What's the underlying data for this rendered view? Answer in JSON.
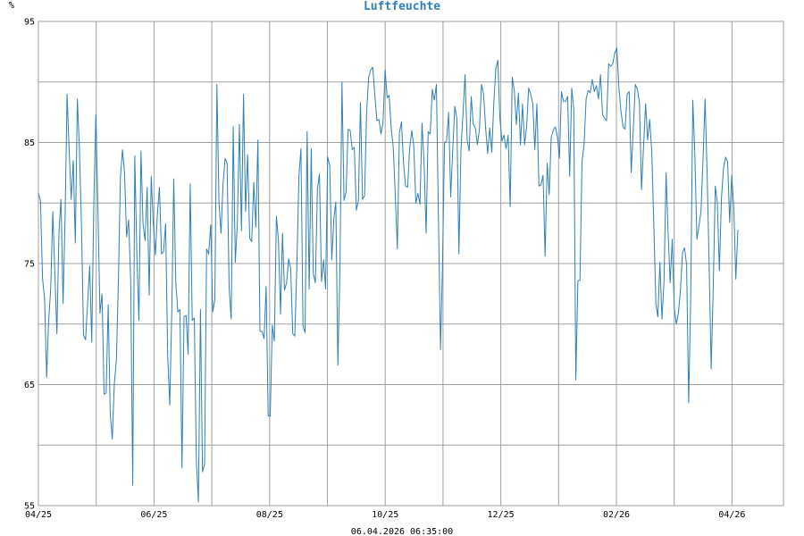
{
  "chart_data": {
    "type": "line",
    "title": "Luftfeuchte",
    "ylabel": "%",
    "footer": "06.04.2026 06:35:00",
    "ylim": [
      55,
      95
    ],
    "y_ticks": [
      95,
      85,
      75,
      65,
      55
    ],
    "x_tick_labels": [
      "04/25",
      "06/25",
      "08/25",
      "10/25",
      "12/25",
      "02/26",
      "04/26"
    ],
    "grid": true,
    "colors": {
      "line": "#2f7fb8",
      "grid": "#a0a0a0",
      "title": "#2f7fb8"
    },
    "series": [
      {
        "values": [
          80.8,
          80.2,
          73.8,
          72.1,
          65.6,
          70.3,
          73.0,
          79.3,
          74.2,
          69.2,
          77.6,
          80.3,
          71.7,
          79.0,
          89.0,
          84.4,
          80.3,
          83.5,
          76.7,
          88.6,
          84.5,
          78.1,
          69.1,
          68.7,
          71.8,
          74.8,
          68.5,
          79.9,
          87.3,
          79.6,
          70.9,
          72.5,
          64.2,
          64.3,
          71.6,
          62.6,
          60.5,
          65.1,
          67.0,
          73.8,
          82.1,
          84.4,
          82.5,
          77.2,
          78.6,
          73.5,
          56.7,
          83.9,
          75.7,
          70.3,
          84.3,
          78.3,
          76.9,
          81.3,
          72.4,
          82.2,
          78.3,
          75.7,
          79.1,
          81.3,
          75.8,
          76.0,
          78.3,
          67.4,
          63.3,
          71.1,
          82.0,
          73.4,
          71.0,
          71.2,
          58.1,
          70.6,
          70.7,
          67.5,
          81.6,
          70.3,
          70.5,
          58.7,
          55.3,
          71.2,
          57.8,
          58.4,
          76.2,
          75.8,
          78.2,
          71.0,
          72.0,
          89.8,
          80.1,
          77.5,
          81.6,
          83.7,
          83.3,
          73.0,
          70.4,
          86.3,
          75.1,
          78.3,
          86.5,
          77.7,
          89.0,
          79.3,
          84.0,
          77.1,
          76.8,
          81.7,
          78.0,
          85.2,
          69.4,
          69.4,
          68.8,
          73.1,
          62.4,
          62.4,
          69.9,
          68.6,
          78.9,
          76.9,
          70.8,
          77.5,
          72.8,
          73.4,
          75.4,
          74.6,
          69.2,
          69.0,
          74.8,
          82.2,
          84.5,
          69.8,
          69.3,
          85.9,
          72.9,
          84.5,
          74.2,
          73.4,
          81.1,
          82.4,
          73.5,
          75.3,
          72.9,
          83.8,
          83.1,
          75.3,
          78.7,
          80.1,
          66.6,
          74.3,
          90.0,
          80.2,
          80.9,
          86.1,
          86.0,
          84.4,
          84.6,
          79.4,
          80.2,
          88.3,
          80.3,
          80.6,
          87.5,
          90.4,
          91.0,
          91.2,
          88.9,
          86.8,
          86.9,
          85.7,
          86.7,
          91.0,
          88.7,
          88.9,
          86.2,
          84.6,
          80.6,
          76.2,
          85.8,
          86.7,
          83.3,
          81.4,
          81.3,
          84.5,
          86.0,
          84.7,
          80.0,
          80.8,
          79.9,
          86.6,
          83.3,
          77.5,
          85.9,
          85.7,
          89.4,
          88.5,
          89.8,
          78.7,
          67.9,
          74.6,
          85.0,
          85.1,
          87.5,
          80.5,
          84.4,
          88.0,
          87.0,
          75.8,
          84.4,
          87.4,
          90.6,
          85.2,
          84.3,
          88.8,
          86.5,
          86.2,
          84.8,
          86.1,
          89.8,
          89.0,
          86.2,
          84.1,
          86.2,
          84.2,
          88.3,
          91.1,
          91.8,
          87.0,
          85.1,
          85.6,
          84.5,
          85.6,
          79.7,
          90.4,
          89.3,
          86.5,
          89.1,
          84.8,
          88.2,
          84.8,
          86.3,
          89.5,
          89.0,
          88.2,
          84.4,
          88.2,
          81.4,
          81.5,
          82.3,
          75.6,
          83.3,
          80.7,
          85.4,
          86.0,
          86.3,
          85.5,
          83.7,
          89.2,
          88.4,
          88.4,
          88.8,
          82.2,
          89.5,
          87.7,
          65.4,
          73.6,
          73.6,
          83.4,
          84.8,
          88.6,
          89.3,
          89.1,
          90.2,
          89.2,
          89.7,
          88.6,
          90.6,
          87.3,
          87.0,
          86.8,
          91.5,
          91.3,
          91.5,
          92.4,
          92.8,
          89.5,
          87.6,
          86.3,
          86.1,
          89.0,
          89.2,
          82.5,
          86.1,
          89.8,
          89.4,
          88.3,
          81.1,
          84.7,
          88.2,
          85.2,
          86.9,
          84.2,
          78.1,
          71.7,
          70.6,
          75.1,
          70.4,
          73.5,
          82.5,
          77.5,
          73.4,
          77.0,
          71.3,
          70.0,
          70.9,
          72.8,
          75.9,
          76.3,
          74.9,
          63.5,
          72.2,
          88.5,
          84.1,
          77.0,
          78.1,
          79.3,
          83.7,
          88.6,
          82.3,
          74.6,
          66.3,
          72.9,
          81.4,
          80.0,
          74.4,
          80.4,
          82.9,
          83.8,
          83.4,
          78.4,
          82.3,
          79.6,
          73.7,
          77.8
        ]
      }
    ]
  }
}
